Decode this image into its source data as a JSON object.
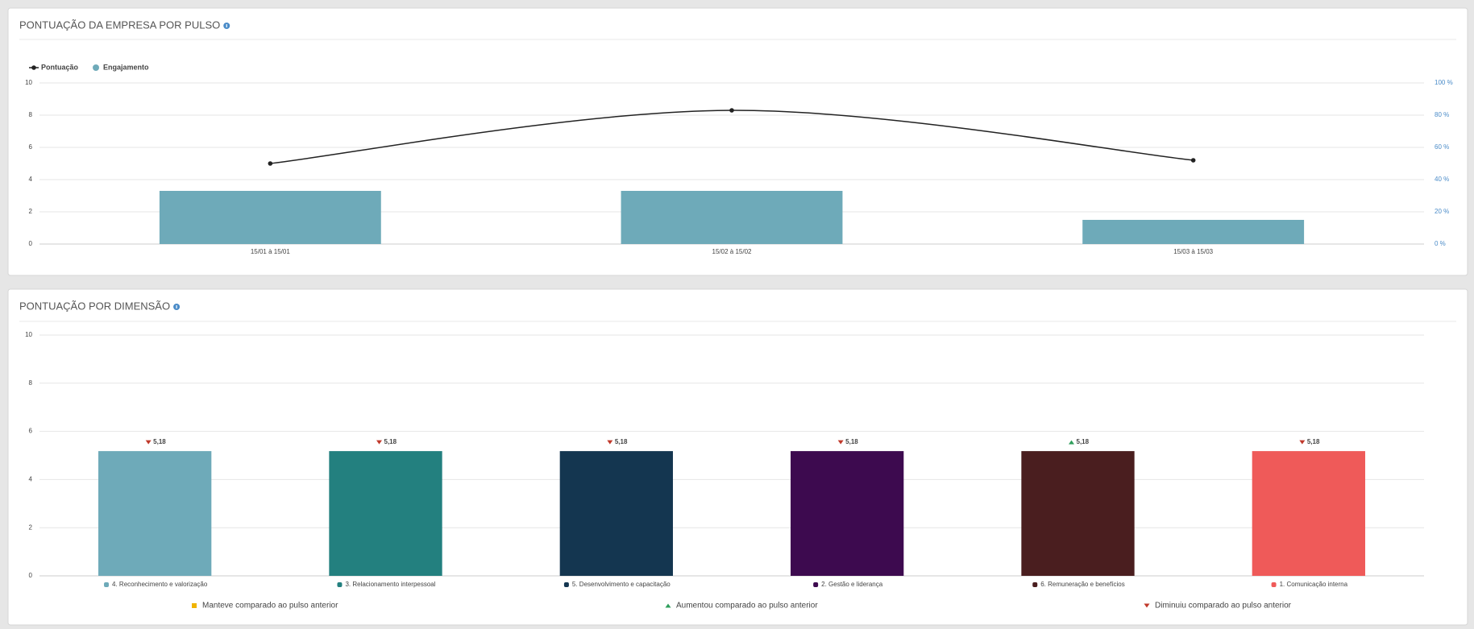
{
  "chart_data": [
    {
      "type": "combo",
      "title": "PONTUAÇÃO DA EMPRESA POR PULSO",
      "categories": [
        "15/01 à 15/01",
        "15/02 à 15/02",
        "15/03 à 15/03"
      ],
      "series": [
        {
          "name": "Pontuação",
          "kind": "line",
          "color": "#222222",
          "values": [
            5.0,
            8.3,
            5.2
          ]
        },
        {
          "name": "Engajamento",
          "kind": "bar",
          "axis": "y2",
          "color": "#6eaab9",
          "values": [
            33,
            33,
            15
          ]
        }
      ],
      "ylim": [
        0,
        10
      ],
      "yticks": [
        0,
        2,
        4,
        6,
        8,
        10
      ],
      "y2lim": [
        0,
        100
      ],
      "y2ticks": [
        {
          "value": 0,
          "label": "0 %"
        },
        {
          "value": 20,
          "label": "20 %"
        },
        {
          "value": 40,
          "label": "40 %"
        },
        {
          "value": 60,
          "label": "60 %"
        },
        {
          "value": 80,
          "label": "80 %"
        },
        {
          "value": 100,
          "label": "100 %"
        }
      ],
      "grid": true,
      "legend": "top-left"
    },
    {
      "type": "bar",
      "title": "PONTUAÇÃO POR DIMENSÃO",
      "categories": [
        "4. Reconhecimento e valorização",
        "3. Relacionamento interpessoal",
        "5. Desenvolvimento e capacitação",
        "2. Gestão e liderança",
        "6. Remuneração e benefícios",
        "1. Comunicação interna"
      ],
      "values": [
        5.18,
        5.18,
        5.18,
        5.18,
        5.18,
        5.18
      ],
      "value_labels": [
        "5,18",
        "5,18",
        "5,18",
        "5,18",
        "5,18",
        "5,18"
      ],
      "colors": [
        "#6eaab9",
        "#23807f",
        "#143650",
        "#3d0a4f",
        "#4a1e1f",
        "#ef5a59"
      ],
      "trends": [
        "down",
        "down",
        "down",
        "down",
        "up",
        "down"
      ],
      "trend_legend": [
        {
          "trend": "same",
          "label": "Manteve comparado ao pulso anterior",
          "color": "#f0b400"
        },
        {
          "trend": "up",
          "label": "Aumentou comparado ao pulso anterior",
          "color": "#2e9e5b"
        },
        {
          "trend": "down",
          "label": "Diminuiu comparado ao pulso anterior",
          "color": "#c0392b"
        }
      ],
      "ylim": [
        0,
        10
      ],
      "yticks": [
        0,
        2,
        4,
        6,
        8,
        10
      ],
      "grid": true
    }
  ]
}
